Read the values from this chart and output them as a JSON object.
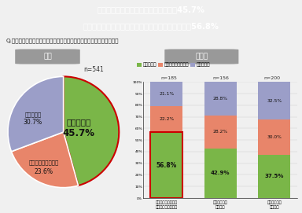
{
  "title_line1": "【ソロ終活】「死後に不安がある」が45.7%",
  "title_line2": "おひとりさま予備軍においては特に不安度が高く、56.8%",
  "question": "Q.いすれはおひとりで死期を迎えることに対して、不安を感じますか？",
  "pie_n": "n=541",
  "pie_data": [
    45.7,
    23.6,
    30.7
  ],
  "pie_colors": [
    "#7ab648",
    "#e8856a",
    "#9b9ec8"
  ],
  "pie_startangle": 90,
  "section_left": "全体",
  "section_right": "状況別",
  "legend_labels": [
    "不安がある",
    "どちらともいえない",
    "不安はない"
  ],
  "legend_colors": [
    "#7ab648",
    "#e8856a",
    "#9b9ec8"
  ],
  "bar_categories": [
    "おひとりさま予備軍\n（夫婦二人暮らし）",
    "おひとりさま\n（死別）",
    "おひとりさま\n（独身）"
  ],
  "bar_ns": [
    "n=185",
    "n=156",
    "n=200"
  ],
  "bar_fuanarui": [
    56.8,
    42.9,
    37.5
  ],
  "bar_dochira": [
    22.2,
    28.2,
    30.0
  ],
  "bar_nai": [
    21.1,
    28.8,
    32.5
  ],
  "bar_color_fuanarui": "#7ab648",
  "bar_color_dochira": "#e8856a",
  "bar_color_nai": "#9b9ec8",
  "highlight_bar_index": 0,
  "highlight_color": "#cc0000",
  "title_bg_color": "#999999",
  "title_text_color": "#ffffff",
  "section_bg_color": "#999999",
  "section_text_color": "#ffffff",
  "background_color": "#f0f0f0",
  "ylim": [
    0,
    100
  ],
  "ytick_vals": [
    0,
    10,
    20,
    30,
    40,
    50,
    60,
    70,
    80,
    90,
    100
  ]
}
